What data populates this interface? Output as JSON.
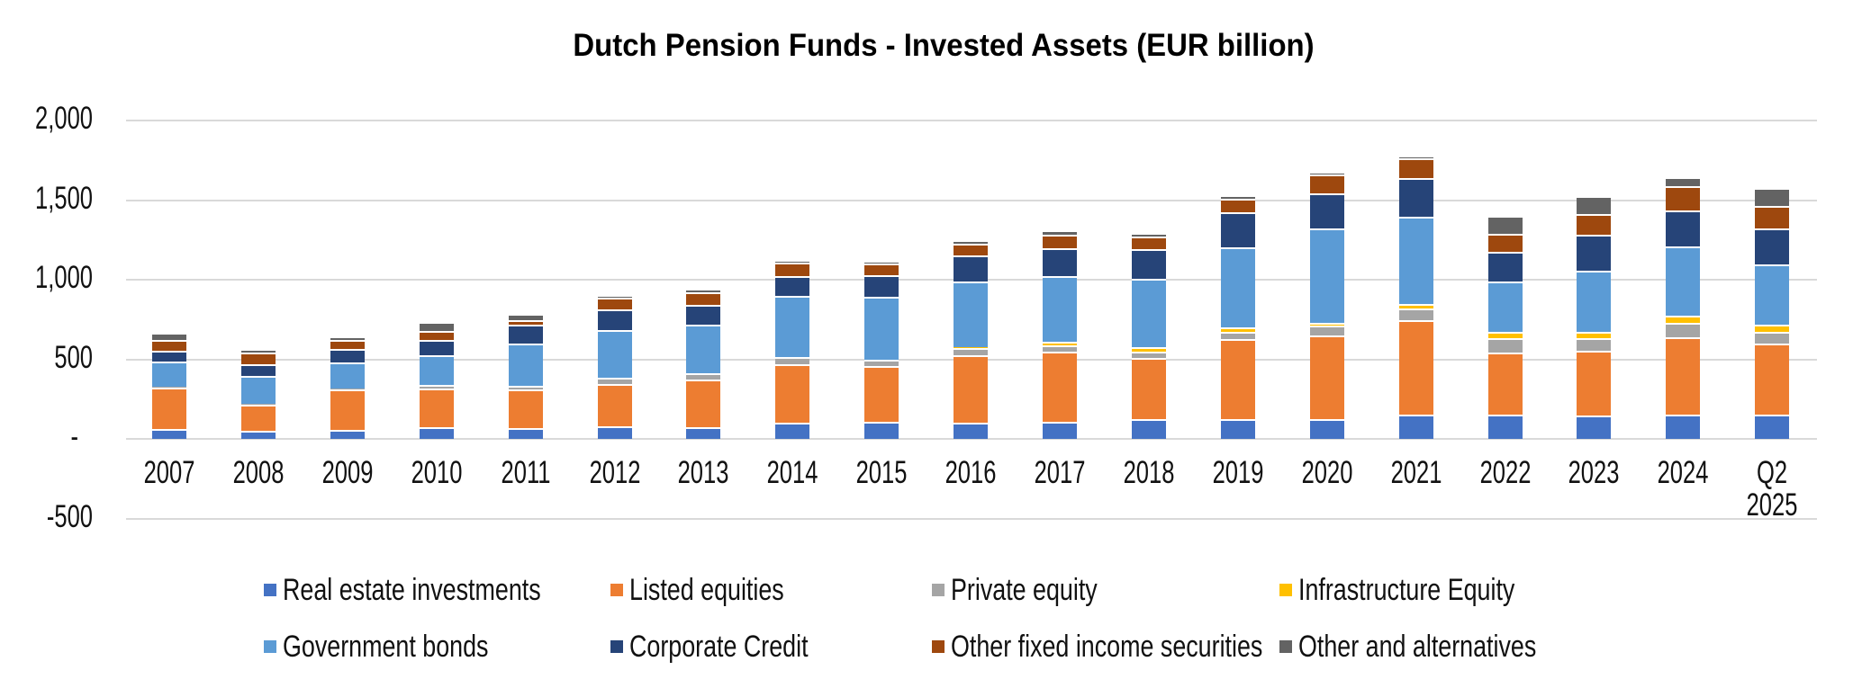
{
  "title": "Dutch Pension Funds - Invested Assets (EUR billion)",
  "chart_data": {
    "type": "bar",
    "stacked": true,
    "title": "Dutch Pension Funds - Invested Assets (EUR billion)",
    "xlabel": "",
    "ylabel": "",
    "ylim": [
      -500,
      2000
    ],
    "grid": true,
    "legend_position": "bottom",
    "categories": [
      "2007",
      "2008",
      "2009",
      "2010",
      "2011",
      "2012",
      "2013",
      "2014",
      "2015",
      "2016",
      "2017",
      "2018",
      "2019",
      "2020",
      "2021",
      "2022",
      "2023",
      "2024",
      "Q2\n2025"
    ],
    "y_ticks": [
      {
        "label": "2,000",
        "value": 2000
      },
      {
        "label": "1,500",
        "value": 1500
      },
      {
        "label": "1,000",
        "value": 1000
      },
      {
        "label": "500",
        "value": 500
      },
      {
        "label": "-",
        "value": 0
      },
      {
        "label": "-500",
        "value": -500
      }
    ],
    "series": [
      {
        "name": "Real estate investments",
        "color": "#4472C4",
        "values": [
          60,
          50,
          55,
          75,
          70,
          80,
          75,
          100,
          105,
          100,
          110,
          125,
          125,
          125,
          155,
          155,
          145,
          150,
          150
        ]
      },
      {
        "name": "Listed equities",
        "color": "#ED7D31",
        "values": [
          260,
          165,
          255,
          240,
          240,
          265,
          300,
          370,
          350,
          425,
          440,
          385,
          500,
          525,
          590,
          390,
          410,
          490,
          450
        ]
      },
      {
        "name": "Private equity",
        "color": "#A5A5A5",
        "values": [
          5,
          5,
          5,
          25,
          25,
          40,
          35,
          45,
          40,
          45,
          40,
          40,
          50,
          60,
          75,
          85,
          80,
          90,
          70
        ]
      },
      {
        "name": "Infrastructure Equity",
        "color": "#FFC000",
        "values": [
          0,
          0,
          0,
          0,
          0,
          0,
          0,
          0,
          0,
          5,
          20,
          25,
          25,
          20,
          30,
          40,
          40,
          45,
          50
        ]
      },
      {
        "name": "Government bonds",
        "color": "#5B9BD5",
        "values": [
          160,
          175,
          165,
          185,
          265,
          300,
          310,
          385,
          400,
          415,
          410,
          430,
          505,
          590,
          545,
          320,
          380,
          435,
          375
        ]
      },
      {
        "name": "Corporate Credit",
        "color": "#264478",
        "values": [
          70,
          75,
          85,
          95,
          115,
          130,
          120,
          125,
          135,
          160,
          175,
          185,
          220,
          220,
          245,
          185,
          230,
          225,
          225
        ]
      },
      {
        "name": "Other fixed income securities",
        "color": "#9E480E",
        "values": [
          65,
          70,
          55,
          60,
          30,
          70,
          80,
          85,
          70,
          75,
          90,
          80,
          85,
          120,
          120,
          115,
          130,
          150,
          145
        ]
      },
      {
        "name": "Other and alternatives",
        "color": "#636363",
        "values": [
          45,
          25,
          25,
          55,
          40,
          10,
          15,
          5,
          5,
          15,
          25,
          25,
          10,
          5,
          20,
          110,
          110,
          60,
          110
        ]
      }
    ]
  }
}
